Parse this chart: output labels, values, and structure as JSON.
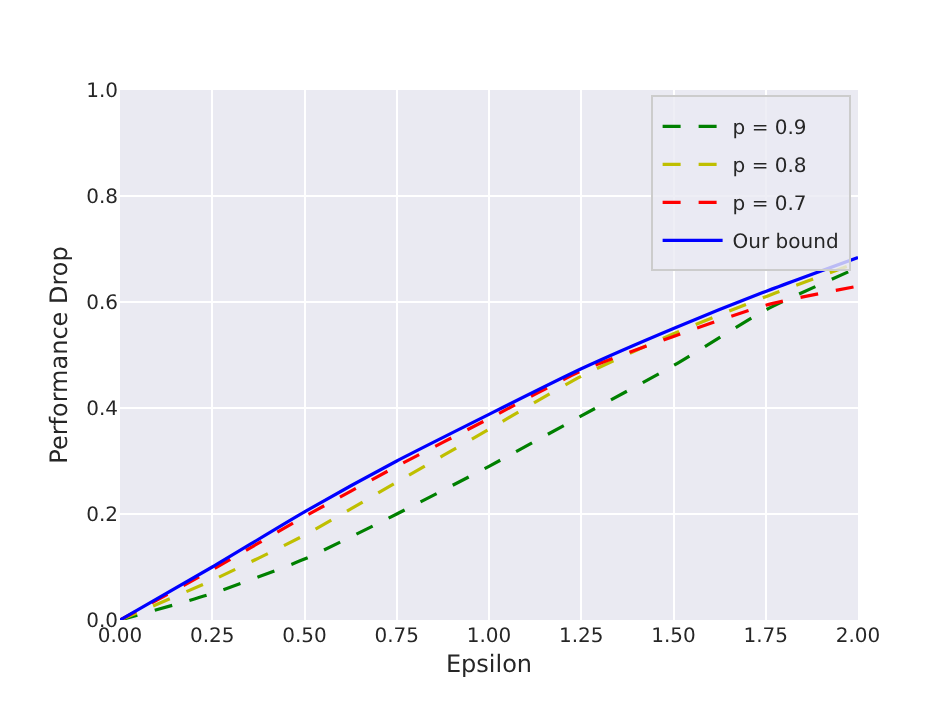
{
  "chart_data": {
    "type": "line",
    "xlabel": "Epsilon",
    "ylabel": "Performance Drop",
    "x": [
      0,
      0.25,
      0.5,
      0.75,
      1.0,
      1.25,
      1.5,
      1.75,
      2.0
    ],
    "series": [
      {
        "name": "p = 0.9",
        "color": "#008000",
        "line_style": "dashed",
        "values": [
          0,
          0.05,
          0.115,
          0.2,
          0.29,
          0.385,
          0.48,
          0.585,
          0.665
        ]
      },
      {
        "name": "p = 0.8",
        "color": "#bfbf00",
        "line_style": "dashed",
        "values": [
          0,
          0.075,
          0.16,
          0.26,
          0.36,
          0.46,
          0.54,
          0.61,
          0.675
        ]
      },
      {
        "name": "p = 0.7",
        "color": "#ff0000",
        "line_style": "dashed",
        "values": [
          0,
          0.095,
          0.195,
          0.29,
          0.38,
          0.47,
          0.535,
          0.594,
          0.63
        ]
      },
      {
        "name": "Our bound",
        "color": "#0000ff",
        "line_style": "solid",
        "values": [
          0,
          0.1,
          0.204,
          0.3,
          0.388,
          0.474,
          0.55,
          0.62,
          0.684
        ]
      }
    ],
    "xlim": [
      0,
      2.0
    ],
    "ylim": [
      0,
      1.0
    ],
    "xticks": [
      {
        "value": 0,
        "label": "0.00"
      },
      0.25,
      {
        "value": 0.5,
        "label": "0.50"
      },
      0.75,
      {
        "value": 1.0,
        "label": "1.00"
      },
      1.25,
      {
        "value": 1.5,
        "label": "1.50"
      },
      1.75,
      {
        "value": 2.0,
        "label": "2.00"
      }
    ],
    "yticks": [
      {
        "value": 0,
        "label": "0.0"
      },
      0.2,
      0.4,
      0.6,
      0.8,
      {
        "value": 1.0,
        "label": "1.0"
      }
    ],
    "grid": true,
    "legend": "top right",
    "marker": "none"
  }
}
